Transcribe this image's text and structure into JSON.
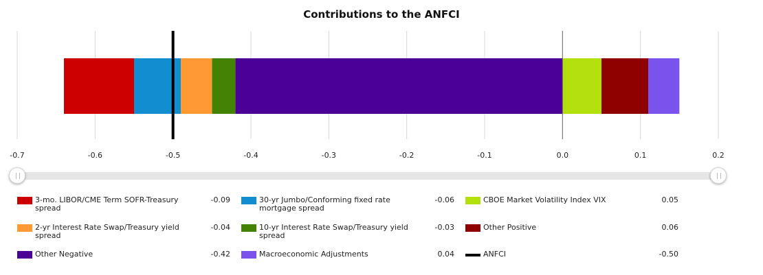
{
  "chart_data": {
    "type": "bar",
    "orientation": "horizontal-stacked",
    "title": "Contributions to the ANFCI",
    "xlabel": "",
    "ylabel": "",
    "xlim": [
      -0.7,
      0.2
    ],
    "x_ticks": [
      "-0.7",
      "-0.6",
      "-0.5",
      "-0.4",
      "-0.3",
      "-0.2",
      "-0.1",
      "0.0",
      "0.1",
      "0.2"
    ],
    "grid": true,
    "legend_position": "bottom",
    "negative_stack": [
      {
        "name": "Other Negative",
        "value": -0.42,
        "color": "#4b0096"
      },
      {
        "name": "10-yr Interest Rate Swap/Treasury yield spread",
        "value": -0.03,
        "color": "#448203"
      },
      {
        "name": "2-yr Interest Rate Swap/Treasury yield spread",
        "value": -0.04,
        "color": "#ff9933"
      },
      {
        "name": "30-yr Jumbo/Conforming fixed rate mortgage spread",
        "value": -0.06,
        "color": "#118dd0"
      },
      {
        "name": "3-mo. LIBOR/CME Term SOFR-Treasury spread",
        "value": -0.09,
        "color": "#cc0000"
      }
    ],
    "positive_stack": [
      {
        "name": "CBOE Market Volatility Index VIX",
        "value": 0.05,
        "color": "#b3e00c"
      },
      {
        "name": "Other Positive",
        "value": 0.06,
        "color": "#8f0000"
      },
      {
        "name": "Macroeconomic Adjustments",
        "value": 0.04,
        "color": "#7a52ec"
      }
    ],
    "marker": {
      "name": "ANFCI",
      "value": -0.5,
      "color": "#000000"
    }
  },
  "legend": [
    {
      "label": "3-mo. LIBOR/CME Term SOFR-Treasury spread",
      "value": "-0.09",
      "color": "#cc0000",
      "kind": "box"
    },
    {
      "label": "30-yr Jumbo/Conforming fixed rate mortgage spread",
      "value": "-0.06",
      "color": "#118dd0",
      "kind": "box"
    },
    {
      "label": "CBOE Market Volatility Index VIX",
      "value": "0.05",
      "color": "#b3e00c",
      "kind": "box"
    },
    {
      "label": "2-yr Interest Rate Swap/Treasury yield spread",
      "value": "-0.04",
      "color": "#ff9933",
      "kind": "box"
    },
    {
      "label": "10-yr Interest Rate Swap/Treasury yield spread",
      "value": "-0.03",
      "color": "#448203",
      "kind": "box"
    },
    {
      "label": "Other Positive",
      "value": "0.06",
      "color": "#8f0000",
      "kind": "box"
    },
    {
      "label": "Other Negative",
      "value": "-0.42",
      "color": "#4b0096",
      "kind": "box"
    },
    {
      "label": "Macroeconomic Adjustments",
      "value": "0.04",
      "color": "#7a52ec",
      "kind": "box"
    },
    {
      "label": "ANFCI",
      "value": "-0.50",
      "color": "#000000",
      "kind": "line"
    }
  ],
  "range_slider": {
    "min": "-0.7",
    "max": "0.2"
  }
}
